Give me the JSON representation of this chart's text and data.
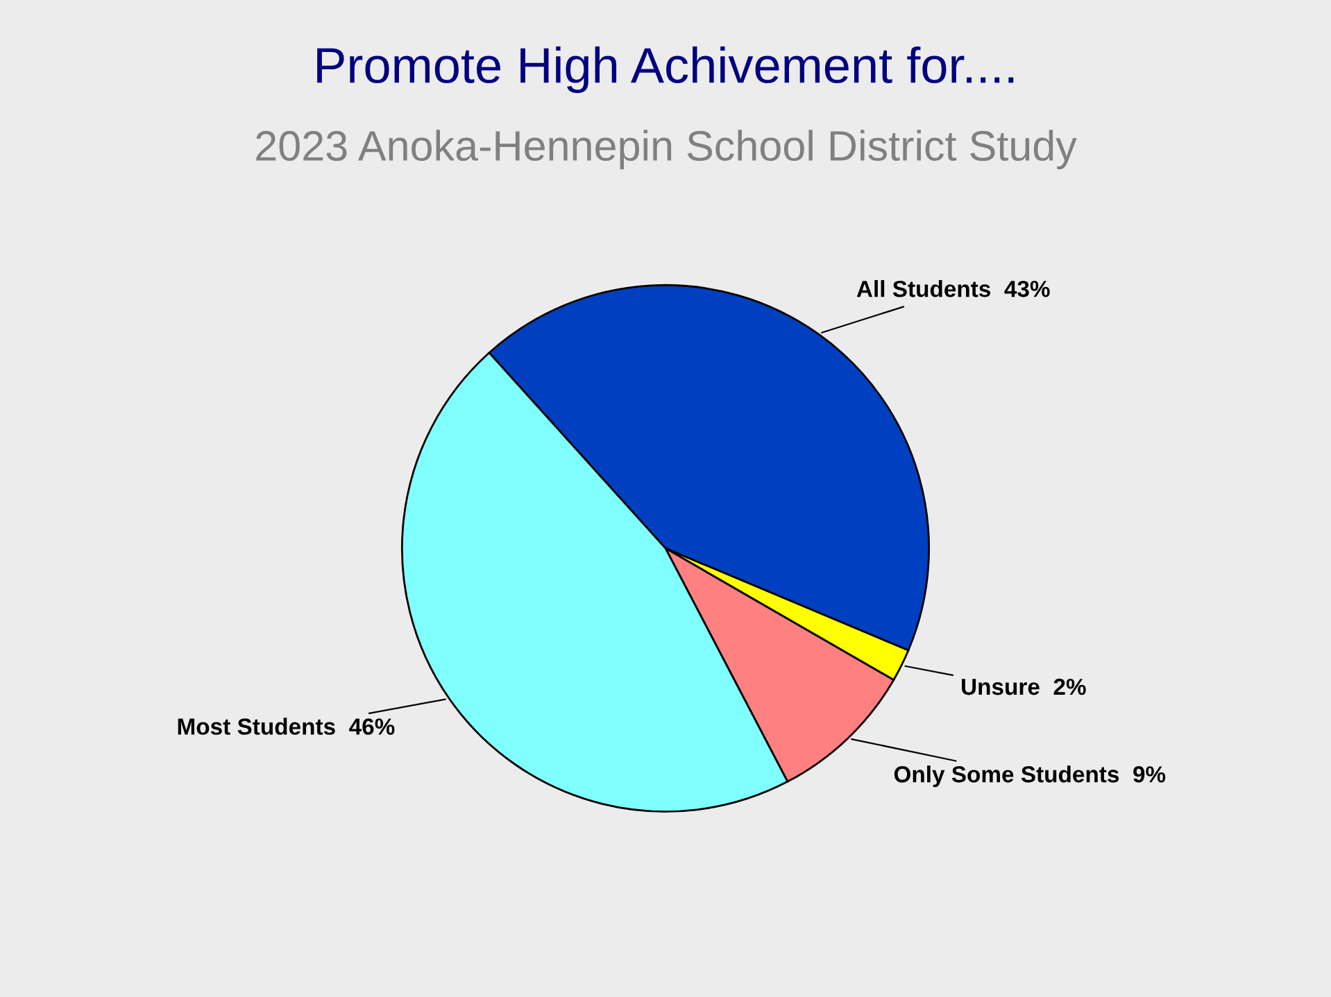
{
  "chart_data": {
    "type": "pie",
    "title": "Promote High Achivement for....",
    "subtitle": "2023 Anoka-Hennepin School District Study",
    "categories": [
      "All Students",
      "Unsure",
      "Only Some Students",
      "Most Students"
    ],
    "values": [
      43,
      2,
      9,
      46
    ],
    "value_labels": [
      "43%",
      "2%",
      "9%",
      "46%"
    ],
    "colors": [
      "#0040c0",
      "#ffff00",
      "#ff8080",
      "#80ffff"
    ],
    "legend": false
  }
}
